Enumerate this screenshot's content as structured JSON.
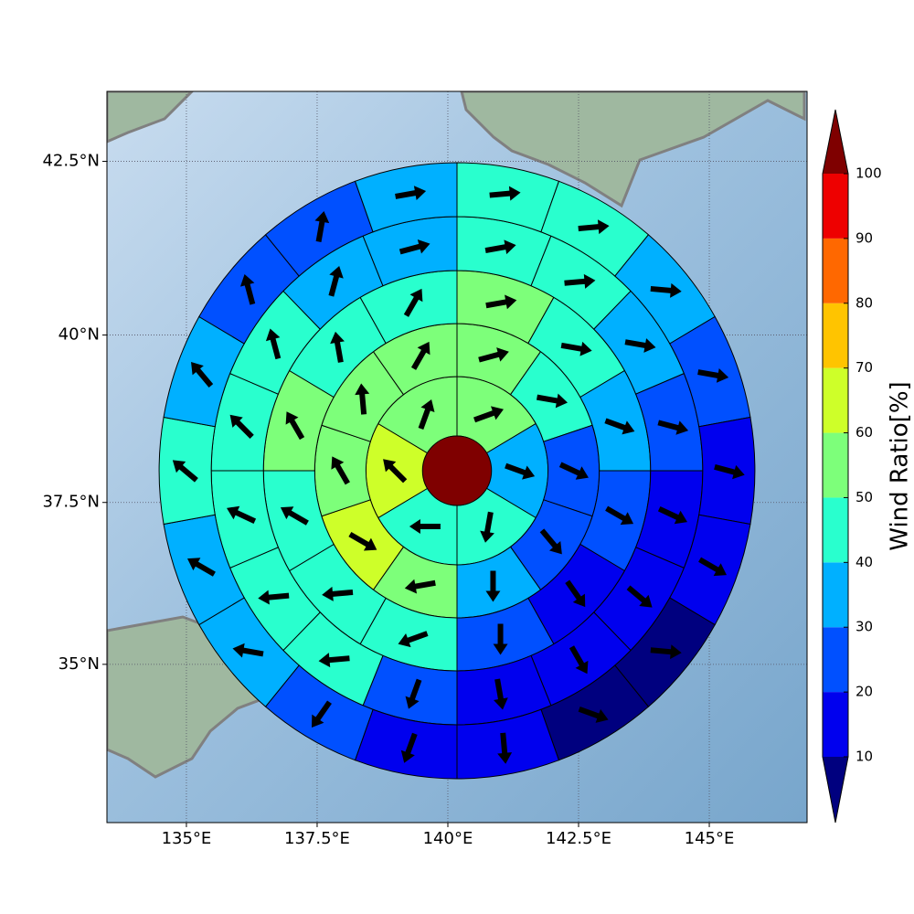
{
  "chart_data": {
    "type": "polar_sector_map",
    "projection": "mercator",
    "xlim": [
      133.48,
      146.87
    ],
    "ylim": [
      32.48,
      43.48
    ],
    "xticks": [
      {
        "value": 135,
        "label": "135°E"
      },
      {
        "value": 137.5,
        "label": "137.5°E"
      },
      {
        "value": 140,
        "label": "140°E"
      },
      {
        "value": 142.5,
        "label": "142.5°E"
      },
      {
        "value": 145,
        "label": "145°E"
      }
    ],
    "yticks": [
      {
        "value": 35,
        "label": "35°N"
      },
      {
        "value": 37.5,
        "label": "37.5°N"
      },
      {
        "value": 40,
        "label": "40°N"
      },
      {
        "value": 42.5,
        "label": "42.5°N"
      }
    ],
    "grid": true,
    "center_value": 100,
    "rings": [
      {
        "values": [
          55,
          35,
          45,
          45,
          65,
          55
        ],
        "directions": [
          70,
          110,
          190,
          270,
          315,
          20
        ]
      },
      {
        "values": [
          55,
          45,
          25,
          25,
          35,
          55,
          65,
          55,
          55,
          55
        ],
        "directions": [
          75,
          100,
          115,
          140,
          180,
          260,
          120,
          330,
          355,
          30
        ]
      },
      {
        "values": [
          55,
          45,
          35,
          25,
          15,
          25,
          45,
          45,
          45,
          55,
          45,
          45
        ],
        "directions": [
          80,
          100,
          110,
          120,
          145,
          180,
          250,
          265,
          300,
          330,
          350,
          30
        ]
      },
      {
        "values": [
          45,
          45,
          35,
          25,
          15,
          15,
          15,
          15,
          25,
          45,
          45,
          45,
          45,
          45,
          35,
          35
        ],
        "directions": [
          80,
          85,
          100,
          105,
          115,
          130,
          150,
          170,
          200,
          265,
          265,
          295,
          315,
          345,
          15,
          75
        ]
      },
      {
        "values": [
          45,
          45,
          35,
          25,
          15,
          15,
          5,
          5,
          15,
          15,
          25,
          35,
          35,
          45,
          35,
          25,
          25,
          35
        ],
        "directions": [
          85,
          85,
          95,
          100,
          105,
          120,
          95,
          110,
          175,
          200,
          215,
          280,
          300,
          310,
          320,
          345,
          10,
          80
        ]
      }
    ],
    "colorbar": {
      "label": "Wind Ratio[%]",
      "levels": [
        10,
        20,
        30,
        40,
        50,
        60,
        70,
        80,
        90,
        100
      ],
      "colors": [
        "#0000ee",
        "#0050ff",
        "#00b0ff",
        "#29ffce",
        "#7dff7a",
        "#ceff29",
        "#ffc400",
        "#ff6800",
        "#ee0000"
      ],
      "under": "#00007f",
      "over": "#7f0000"
    }
  }
}
